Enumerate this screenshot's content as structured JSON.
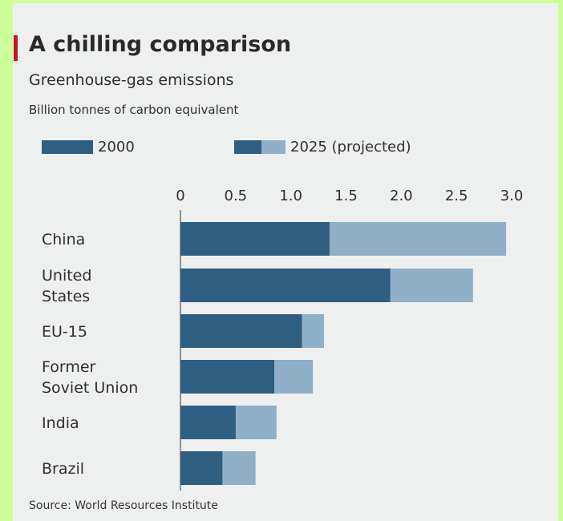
{
  "title": "A chilling comparison",
  "subtitle": "Greenhouse-gas emissions",
  "unit_label": "Billion tonnes of carbon equivalent",
  "source": "Source: World Resources Institute",
  "legend": {
    "item1": "2000",
    "item2": "2025 (projected)"
  },
  "colors": {
    "page_background": "#ccff99",
    "card_background": "#eef0ef",
    "bar_2000": "#2e5e80",
    "bar_2025": "#8fb0c6",
    "accent": "#c8141e"
  },
  "chart_data": {
    "type": "bar",
    "orientation": "horizontal",
    "stacked": "overlay",
    "title": "A chilling comparison",
    "subtitle": "Greenhouse-gas emissions",
    "unit": "Billion tonnes of carbon equivalent",
    "categories": [
      "China",
      "United States",
      "EU-15",
      "Former Soviet Union",
      "India",
      "Brazil"
    ],
    "category_labels": [
      [
        "China"
      ],
      [
        "United",
        "States"
      ],
      [
        "EU-15"
      ],
      [
        "Former",
        "Soviet Union"
      ],
      [
        "India"
      ],
      [
        "Brazil"
      ]
    ],
    "series": [
      {
        "name": "2000",
        "values": [
          1.35,
          1.9,
          1.1,
          0.85,
          0.5,
          0.38
        ]
      },
      {
        "name": "2025 (projected)",
        "values": [
          2.95,
          2.65,
          1.3,
          1.2,
          0.87,
          0.68
        ]
      }
    ],
    "xlim": [
      0,
      3.0
    ],
    "xticks": [
      "0",
      "0.5",
      "1.0",
      "1.5",
      "2.0",
      "2.5",
      "3.0"
    ],
    "legend_position": "top-left",
    "grid": false,
    "source": "Source: World Resources Institute"
  }
}
